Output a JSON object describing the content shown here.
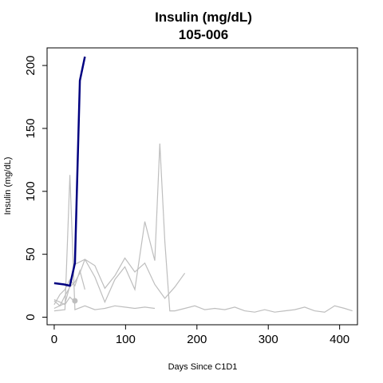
{
  "chart_data": {
    "type": "line",
    "title": "Insulin (mg/dL)",
    "subtitle": "105-006",
    "xlabel": "Days Since C1D1",
    "ylabel": "Insulin (mg/dL)",
    "xlim": [
      -10,
      425
    ],
    "ylim": [
      -6,
      214
    ],
    "xticks": [
      0,
      100,
      200,
      300,
      400
    ],
    "yticks": [
      0,
      50,
      100,
      150,
      200
    ],
    "grid": false,
    "colors": {
      "highlight": "#000080",
      "background_series": "#bebebe"
    },
    "highlight_series": {
      "x": [
        0,
        14,
        22,
        29,
        36,
        43
      ],
      "y": [
        27,
        26,
        25,
        43,
        188,
        207
      ]
    },
    "background_series": [
      {
        "x": [
          0,
          8,
          15,
          22,
          29,
          36,
          43,
          57,
          71,
          85,
          99,
          113,
          127,
          141,
          155,
          169,
          183
        ],
        "y": [
          13,
          9,
          17,
          24,
          28,
          35,
          46,
          41,
          23,
          33,
          47,
          36,
          43,
          26,
          15,
          24,
          35
        ]
      },
      {
        "x": [
          0,
          15,
          22,
          29,
          43,
          57,
          71,
          85,
          99,
          113,
          127,
          141,
          148,
          155,
          162,
          169,
          183,
          197,
          211,
          225,
          239,
          253,
          267,
          281,
          295,
          309,
          323,
          337,
          351,
          365,
          379,
          393,
          407,
          418
        ],
        "y": [
          7,
          11,
          25,
          42,
          46,
          32,
          12,
          30,
          40,
          22,
          76,
          45,
          138,
          60,
          5,
          5,
          7,
          9,
          6,
          7,
          6,
          8,
          5,
          4,
          6,
          4,
          5,
          6,
          8,
          5,
          4,
          9,
          7,
          5
        ]
      },
      {
        "x": [
          0,
          15,
          22,
          29,
          43,
          57,
          71,
          85,
          99,
          113,
          127,
          141
        ],
        "y": [
          5,
          6,
          113,
          6,
          9,
          6,
          7,
          9,
          8,
          7,
          8,
          7
        ]
      },
      {
        "x": [
          0,
          8,
          15,
          22,
          29,
          36,
          43
        ],
        "y": [
          10,
          18,
          22,
          30,
          25,
          37,
          22
        ]
      },
      {
        "x": [
          0,
          8,
          15,
          22,
          29
        ],
        "y": [
          14,
          12,
          10,
          16,
          12
        ]
      }
    ],
    "background_points": [
      {
        "x": 29,
        "y": 13
      }
    ]
  }
}
